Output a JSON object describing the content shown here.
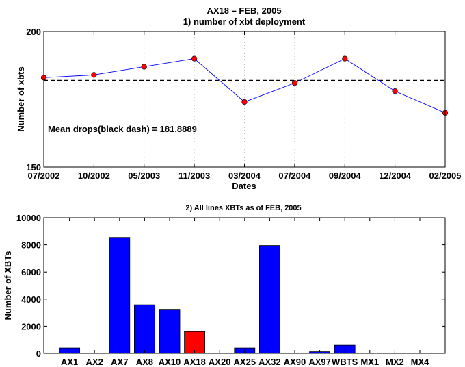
{
  "chart_data": [
    {
      "type": "line",
      "title": "AX18 – FEB, 2005",
      "subtitle": "1) number of xbt deployment",
      "xlabel": "Dates",
      "ylabel": "Number of xbts",
      "ylim": [
        150,
        200
      ],
      "yticks": [
        "150",
        "200"
      ],
      "categories": [
        "07/2002",
        "10/2002",
        "05/2003",
        "11/2003",
        "03/2004",
        "07/2004",
        "09/2004",
        "12/2004",
        "02/2005"
      ],
      "values": [
        183,
        184,
        187,
        190,
        174,
        181,
        190,
        178,
        170
      ],
      "mean_line": 181.8889,
      "annotation": "Mean drops(black dash) = 181.8889",
      "grid": "vertical dotted",
      "colors": {
        "line": "#0000ff",
        "marker": "#ff0000",
        "mean": "#000000"
      }
    },
    {
      "type": "bar",
      "title": "2) All lines XBTs as of FEB, 2005",
      "xlabel": "",
      "ylabel": "Number of XBTs",
      "ylim": [
        0,
        10000
      ],
      "yticks": [
        "0",
        "2000",
        "4000",
        "6000",
        "8000",
        "10000"
      ],
      "categories": [
        "AX1",
        "AX2",
        "AX7",
        "AX8",
        "AX10",
        "AX18",
        "AX20",
        "AX25",
        "AX32",
        "AX90",
        "AX97",
        "WBTS",
        "MX1",
        "MX2",
        "MX4"
      ],
      "values": [
        400,
        0,
        8550,
        3580,
        3200,
        1600,
        0,
        400,
        7950,
        0,
        120,
        600,
        0,
        0,
        0
      ],
      "highlight": "AX18",
      "colors": {
        "bar": "#0000ff",
        "highlight": "#ff0000"
      }
    }
  ]
}
